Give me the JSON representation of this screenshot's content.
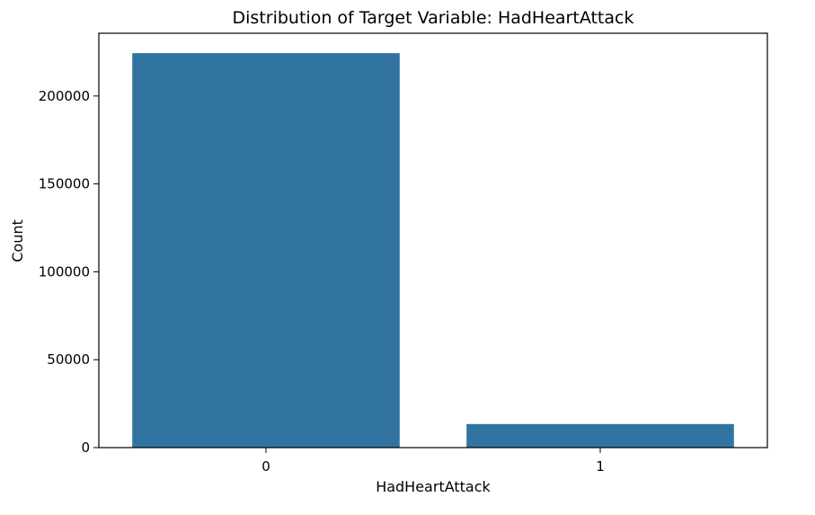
{
  "chart_data": {
    "type": "bar",
    "title": "Distribution of Target Variable: HadHeartAttack",
    "xlabel": "HadHeartAttack",
    "ylabel": "Count",
    "categories": [
      "0",
      "1"
    ],
    "values": [
      224400,
      13400
    ],
    "ylim": [
      0,
      235700
    ],
    "yticks": [
      0,
      50000,
      100000,
      150000,
      200000
    ],
    "ytick_labels": [
      "0",
      "50000",
      "100000",
      "150000",
      "200000"
    ],
    "bar_color": "#3274a1",
    "grid": false,
    "legend": "none"
  }
}
